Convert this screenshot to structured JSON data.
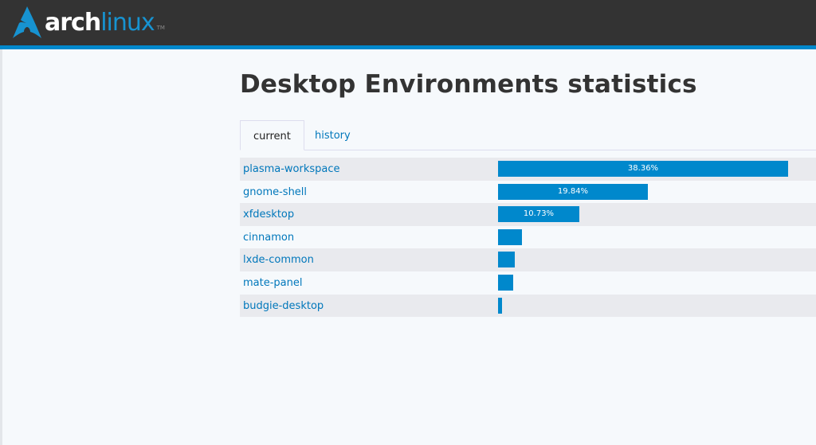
{
  "header": {
    "logo_text_arch": "arch",
    "logo_text_linux": "linux",
    "logo_tm": "TM",
    "brand_color": "#1793d1",
    "accent": "#0088cc"
  },
  "page": {
    "title": "Desktop Environments statistics"
  },
  "tabs": [
    {
      "label": "current",
      "active": true
    },
    {
      "label": "history",
      "active": false
    }
  ],
  "chart_data": {
    "type": "bar",
    "orientation": "horizontal",
    "categories": [
      "plasma-workspace",
      "gnome-shell",
      "xfdesktop",
      "cinnamon",
      "lxde-common",
      "mate-panel",
      "budgie-desktop"
    ],
    "values": [
      38.36,
      19.84,
      10.73,
      3.2,
      2.2,
      2.0,
      0.5
    ],
    "labels": [
      "38.36%",
      "19.84%",
      "10.73%",
      "",
      "",
      "",
      ""
    ],
    "unit": "%",
    "xlim": [
      0,
      100
    ],
    "bar_color": "#0088cc"
  }
}
